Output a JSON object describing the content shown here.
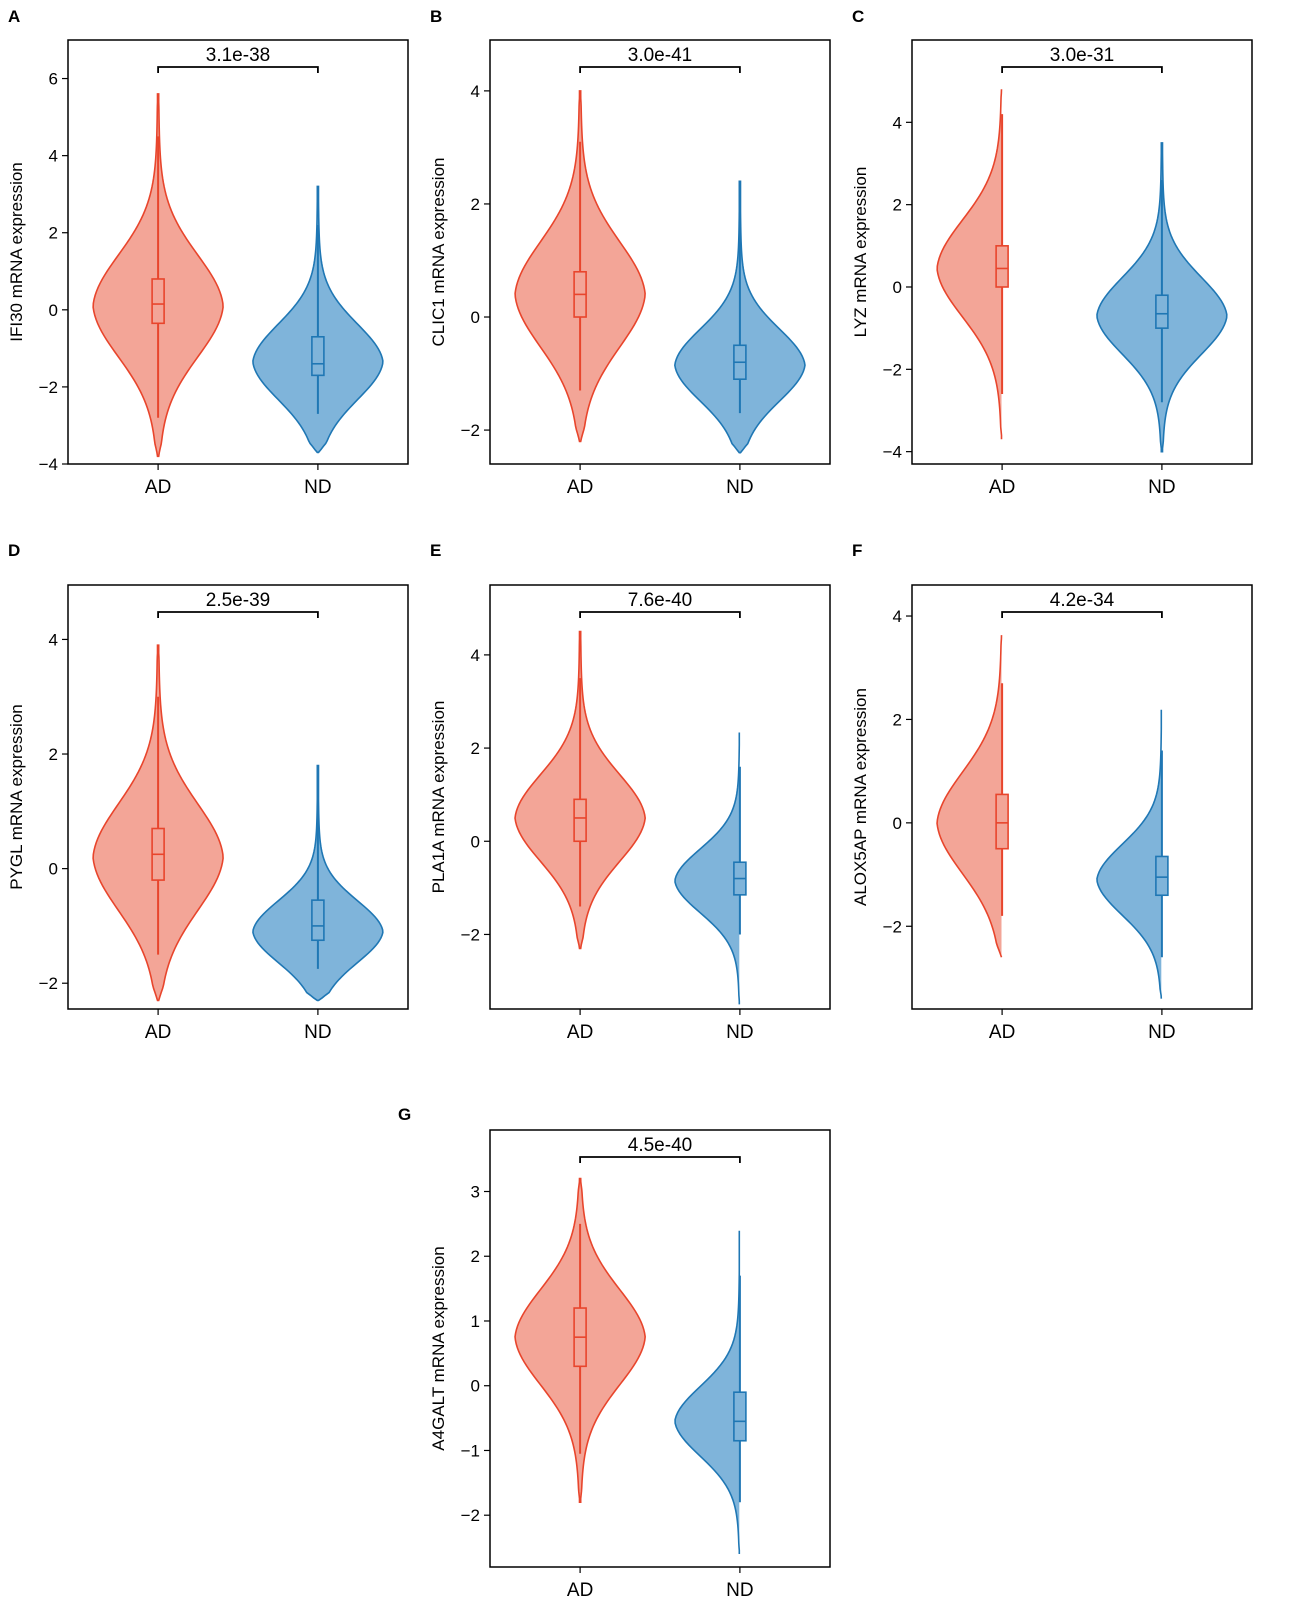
{
  "chart_data": [
    {
      "type": "violin",
      "panel": "A",
      "ylabel": "IFI30 mRNA expression",
      "categories": [
        "AD",
        "ND"
      ],
      "pvalue": "3.1e-38",
      "ylim": [
        -4,
        7
      ],
      "yticks": [
        -4,
        -2,
        0,
        2,
        4,
        6
      ],
      "ytick_labels": [
        "−4",
        "−2",
        "0",
        "2",
        "4",
        "6"
      ],
      "series": [
        {
          "name": "AD",
          "color": "#e8452c",
          "fill": "#f3a597",
          "min": -3.8,
          "max": 5.6,
          "q1": -0.35,
          "median": 0.15,
          "q3": 0.8,
          "whisker_low": -2.8,
          "whisker_high": 4.5,
          "mode": 0.1,
          "spread": 1.35
        },
        {
          "name": "ND",
          "color": "#1f77b4",
          "fill": "#7fb4da",
          "min": -3.7,
          "max": 3.2,
          "q1": -1.7,
          "median": -1.4,
          "q3": -0.7,
          "whisker_low": -2.7,
          "whisker_high": 2.2,
          "mode": -1.35,
          "spread": 1.0
        }
      ]
    },
    {
      "type": "violin",
      "panel": "B",
      "ylabel": "CLIC1 mRNA expression",
      "categories": [
        "AD",
        "ND"
      ],
      "pvalue": "3.0e-41",
      "ylim": [
        -2.6,
        4.9
      ],
      "yticks": [
        -2,
        0,
        2,
        4
      ],
      "ytick_labels": [
        "−2",
        "0",
        "2",
        "4"
      ],
      "series": [
        {
          "name": "AD",
          "color": "#e8452c",
          "fill": "#f3a597",
          "min": -2.2,
          "max": 4.0,
          "q1": 0.0,
          "median": 0.4,
          "q3": 0.8,
          "whisker_low": -1.3,
          "whisker_high": 3.1,
          "mode": 0.4,
          "spread": 0.95
        },
        {
          "name": "ND",
          "color": "#1f77b4",
          "fill": "#7fb4da",
          "min": -2.4,
          "max": 2.4,
          "q1": -1.1,
          "median": -0.8,
          "q3": -0.5,
          "whisker_low": -1.7,
          "whisker_high": 1.7,
          "mode": -0.85,
          "spread": 0.65
        }
      ]
    },
    {
      "type": "violin",
      "panel": "C",
      "ylabel": "LYZ mRNA expression",
      "categories": [
        "AD",
        "ND"
      ],
      "pvalue": "3.0e-31",
      "ylim": [
        -4.3,
        6.0
      ],
      "yticks": [
        -4,
        -2,
        0,
        2,
        4
      ],
      "ytick_labels": [
        "−4",
        "−2",
        "0",
        "2",
        "4"
      ],
      "series": [
        {
          "name": "AD",
          "color": "#e8452c",
          "fill": "#f3a597",
          "min": -3.7,
          "max": 4.9,
          "q1": 0.0,
          "median": 0.45,
          "q3": 1.0,
          "whisker_low": -2.6,
          "whisker_high": 4.2,
          "mode": 0.45,
          "spread": 1.2
        },
        {
          "name": "ND",
          "color": "#1f77b4",
          "fill": "#7fb4da",
          "min": -4.0,
          "max": 3.5,
          "q1": -1.0,
          "median": -0.65,
          "q3": -0.2,
          "whisker_low": -2.8,
          "whisker_high": 2.6,
          "mode": -0.7,
          "spread": 0.95
        }
      ]
    },
    {
      "type": "violin",
      "panel": "D",
      "ylabel": "PYGL mRNA expression",
      "categories": [
        "AD",
        "ND"
      ],
      "pvalue": "2.5e-39",
      "ylim": [
        -2.45,
        4.95
      ],
      "yticks": [
        -2,
        0,
        2,
        4
      ],
      "ytick_labels": [
        "−2",
        "0",
        "2",
        "4"
      ],
      "series": [
        {
          "name": "AD",
          "color": "#e8452c",
          "fill": "#f3a597",
          "min": -2.3,
          "max": 3.9,
          "q1": -0.2,
          "median": 0.25,
          "q3": 0.7,
          "whisker_low": -1.5,
          "whisker_high": 3.0,
          "mode": 0.2,
          "spread": 0.95
        },
        {
          "name": "ND",
          "color": "#1f77b4",
          "fill": "#7fb4da",
          "min": -2.3,
          "max": 1.8,
          "q1": -1.25,
          "median": -1.0,
          "q3": -0.55,
          "whisker_low": -1.75,
          "whisker_high": 1.2,
          "mode": -1.1,
          "spread": 0.55
        }
      ]
    },
    {
      "type": "violin",
      "panel": "E",
      "ylabel": "PLA1A mRNA expression",
      "categories": [
        "AD",
        "ND"
      ],
      "pvalue": "7.6e-40",
      "ylim": [
        -3.6,
        5.5
      ],
      "yticks": [
        -2,
        0,
        2,
        4
      ],
      "ytick_labels": [
        "−2",
        "0",
        "2",
        "4"
      ],
      "series": [
        {
          "name": "AD",
          "color": "#e8452c",
          "fill": "#f3a597",
          "min": -2.3,
          "max": 4.5,
          "q1": 0.0,
          "median": 0.5,
          "q3": 0.9,
          "whisker_low": -1.4,
          "whisker_high": 3.5,
          "mode": 0.5,
          "spread": 0.95
        },
        {
          "name": "ND",
          "color": "#1f77b4",
          "fill": "#7fb4da",
          "min": -3.5,
          "max": 2.4,
          "q1": -1.15,
          "median": -0.8,
          "q3": -0.45,
          "whisker_low": -2.0,
          "whisker_high": 1.6,
          "mode": -0.85,
          "spread": 0.7
        }
      ]
    },
    {
      "type": "violin",
      "panel": "F",
      "ylabel": "ALOX5AP mRNA expression",
      "categories": [
        "AD",
        "ND"
      ],
      "pvalue": "4.2e-34",
      "ylim": [
        -3.6,
        4.6
      ],
      "yticks": [
        -2,
        0,
        2,
        4
      ],
      "ytick_labels": [
        "−2",
        "0",
        "2",
        "4"
      ],
      "series": [
        {
          "name": "AD",
          "color": "#e8452c",
          "fill": "#f3a597",
          "min": -2.6,
          "max": 3.7,
          "q1": -0.5,
          "median": 0.0,
          "q3": 0.55,
          "whisker_low": -1.8,
          "whisker_high": 2.7,
          "mode": 0.0,
          "spread": 1.0
        },
        {
          "name": "ND",
          "color": "#1f77b4",
          "fill": "#7fb4da",
          "min": -3.4,
          "max": 2.25,
          "q1": -1.4,
          "median": -1.05,
          "q3": -0.65,
          "whisker_low": -2.6,
          "whisker_high": 1.4,
          "mode": -1.1,
          "spread": 0.7
        }
      ]
    },
    {
      "type": "violin",
      "panel": "G",
      "ylabel": "A4GALT mRNA expression",
      "categories": [
        "AD",
        "ND"
      ],
      "pvalue": "4.5e-40",
      "ylim": [
        -2.8,
        3.95
      ],
      "yticks": [
        -2,
        -1,
        0,
        1,
        2,
        3
      ],
      "ytick_labels": [
        "−2",
        "−1",
        "0",
        "1",
        "2",
        "3"
      ],
      "series": [
        {
          "name": "AD",
          "color": "#e8452c",
          "fill": "#f3a597",
          "min": -1.8,
          "max": 3.2,
          "q1": 0.3,
          "median": 0.75,
          "q3": 1.2,
          "whisker_low": -1.05,
          "whisker_high": 2.5,
          "mode": 0.75,
          "spread": 0.75
        },
        {
          "name": "ND",
          "color": "#1f77b4",
          "fill": "#7fb4da",
          "min": -2.6,
          "max": 2.45,
          "q1": -0.85,
          "median": -0.55,
          "q3": -0.1,
          "whisker_low": -1.8,
          "whisker_high": 1.7,
          "mode": -0.55,
          "spread": 0.55
        }
      ]
    }
  ]
}
